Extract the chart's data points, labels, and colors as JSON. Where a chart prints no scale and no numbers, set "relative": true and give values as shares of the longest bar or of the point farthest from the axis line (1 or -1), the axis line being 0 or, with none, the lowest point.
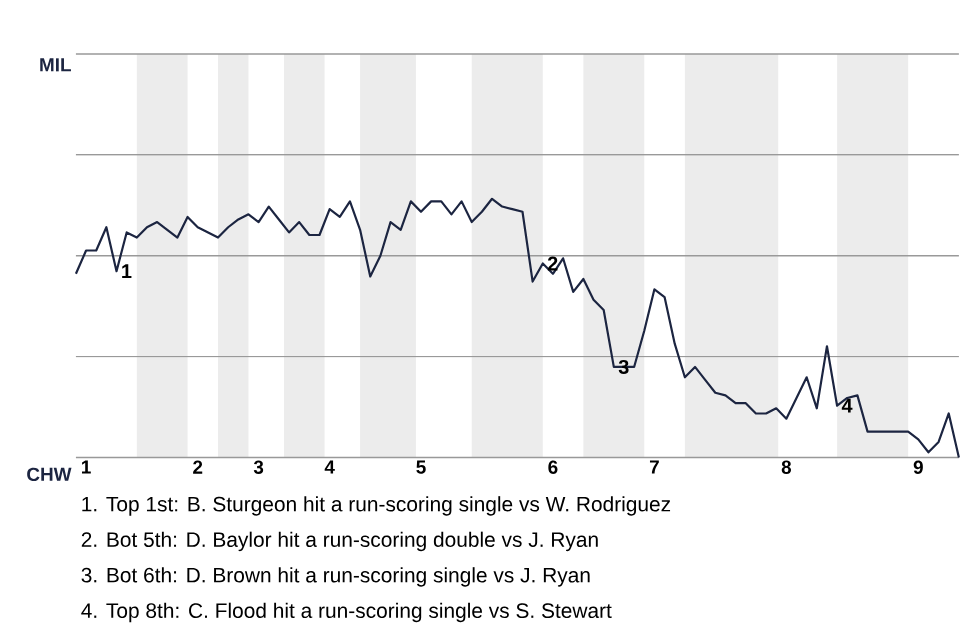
{
  "chart_data": {
    "type": "line",
    "relative": true,
    "categories": [
      null,
      "1",
      null,
      null,
      null,
      null,
      null,
      null,
      null,
      null,
      null,
      null,
      "2",
      null,
      null,
      null,
      null,
      null,
      "3",
      null,
      null,
      null,
      null,
      null,
      null,
      "4",
      null,
      null,
      null,
      null,
      null,
      null,
      null,
      null,
      "5",
      null,
      null,
      null,
      null,
      null,
      null,
      null,
      null,
      null,
      null,
      null,
      null,
      "6",
      null,
      null,
      null,
      null,
      null,
      null,
      null,
      null,
      null,
      "7",
      null,
      null,
      null,
      null,
      null,
      null,
      null,
      null,
      null,
      null,
      null,
      null,
      "8",
      null,
      null,
      null,
      null,
      null,
      null,
      null,
      null,
      null,
      null,
      null,
      null,
      "9",
      null,
      null,
      null,
      null
    ],
    "series": [
      {
        "color": "#1c2541",
        "values": [
          0.71,
          0.8,
          0.8,
          0.89,
          0.72,
          0.87,
          0.85,
          0.89,
          0.91,
          0.88,
          0.85,
          0.93,
          0.89,
          0.87,
          0.85,
          0.89,
          0.92,
          0.94,
          0.91,
          0.97,
          0.92,
          0.87,
          0.91,
          0.86,
          0.86,
          0.96,
          0.93,
          0.99,
          0.88,
          0.7,
          0.78,
          0.91,
          0.88,
          0.99,
          0.95,
          0.99,
          0.99,
          0.94,
          0.99,
          0.91,
          0.95,
          1,
          0.97,
          0.96,
          0.95,
          0.68,
          0.75,
          0.71,
          0.77,
          0.64,
          0.69,
          0.61,
          0.57,
          0.35,
          0.35,
          0.35,
          0.49,
          0.65,
          0.62,
          0.44,
          0.31,
          0.35,
          0.3,
          0.25,
          0.24,
          0.21,
          0.21,
          0.17,
          0.17,
          0.19,
          0.15,
          0.23,
          0.31,
          0.19,
          0.43,
          0.2,
          0.23,
          0.24,
          0.1,
          0.1,
          0.1,
          0.1,
          0.1,
          0.07,
          0.02,
          0.06,
          0.17,
          0
        ]
      }
    ],
    "marker": "none",
    "line_style": "solid",
    "ref_lines": [
      {
        "axis": "y",
        "value": 0,
        "color": "#999999"
      },
      {
        "axis": "y",
        "value": 0.39,
        "color": "#999999"
      },
      {
        "axis": "y",
        "value": 0.78,
        "color": "#999999"
      },
      {
        "axis": "y",
        "value": 1.17,
        "color": "#999999"
      },
      {
        "axis": "y",
        "value": 1.56,
        "color": "#999999"
      }
    ],
    "annotations": [
      "MIL",
      "CHW",
      {
        "text": "1",
        "y": 0.72
      },
      {
        "text": "2",
        "y": 0.75
      },
      {
        "text": "3",
        "y": 0.35
      },
      {
        "text": "4",
        "y": 0.2
      },
      "1. Top 1st: B. Sturgeon hit a run-scoring single vs W. Rodriguez",
      "2. Bot 5th: D. Baylor hit a run-scoring double vs J. Ryan",
      "3. Bot 6th: D. Brown hit a run-scoring single vs J. Ryan",
      "4. Top 8th: C. Flood hit a run-scoring single vs S. Stewart"
    ]
  }
}
